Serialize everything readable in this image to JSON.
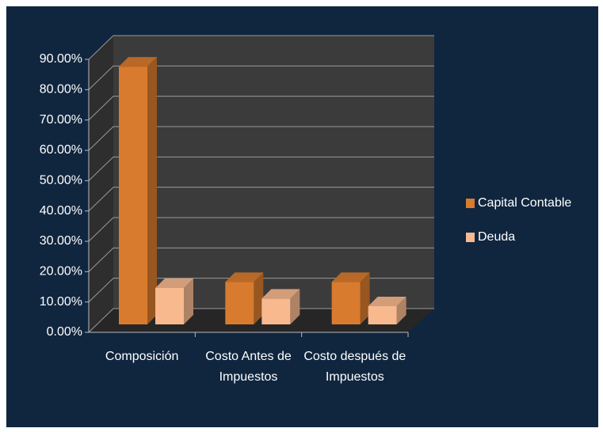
{
  "chart_data": {
    "type": "bar3d",
    "categories": [
      "Composición",
      "Costo Antes de Impuestos",
      "Costo después de Impuestos"
    ],
    "series": [
      {
        "name": "Capital Contable",
        "color": "#d97b2e",
        "values": [
          85,
          14,
          14
        ]
      },
      {
        "name": "Deuda",
        "color": "#f8b98f",
        "values": [
          12,
          8.5,
          6
        ]
      }
    ],
    "ylim": [
      0,
      90
    ],
    "yticks": [
      {
        "value": 0,
        "label": "0.00%"
      },
      {
        "value": 10,
        "label": "10.00%"
      },
      {
        "value": 20,
        "label": "20.00%"
      },
      {
        "value": 30,
        "label": "30.00%"
      },
      {
        "value": 40,
        "label": "40.00%"
      },
      {
        "value": 50,
        "label": "50.00%"
      },
      {
        "value": 60,
        "label": "60.00%"
      },
      {
        "value": 70,
        "label": "70.00%"
      },
      {
        "value": 80,
        "label": "80.00%"
      },
      {
        "value": 90,
        "label": "90.00%"
      }
    ],
    "grid": true,
    "legend": "right"
  }
}
